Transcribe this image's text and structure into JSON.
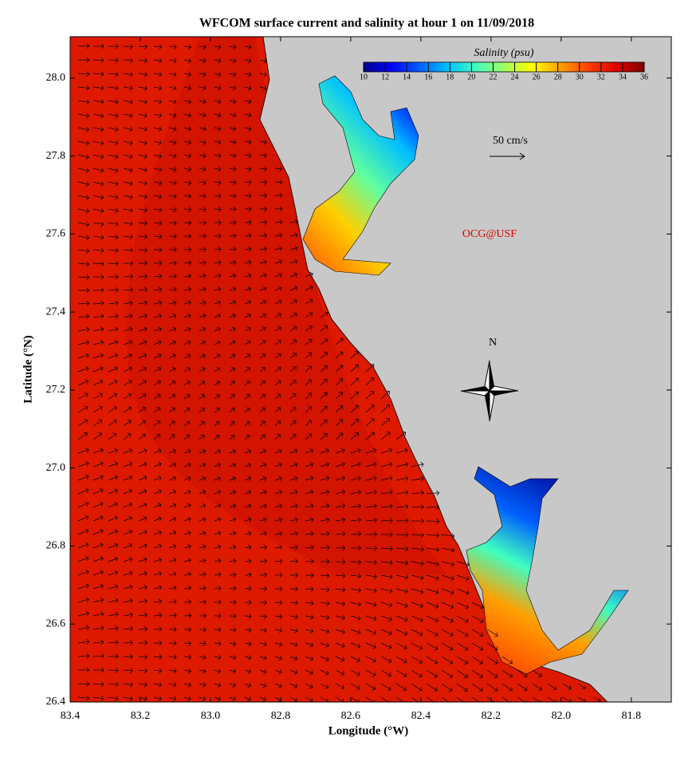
{
  "map": {
    "title": "WFCOM surface current and salinity at hour 1 on 11/09/2018",
    "x_label": "Longitude (°W)",
    "y_label": "Latitude (°N)",
    "xlim": [
      83.4,
      81.686
    ],
    "ylim": [
      26.4,
      28.106
    ],
    "xticks": [
      {
        "value": 83.4,
        "label": "83.4"
      },
      {
        "value": 83.2,
        "label": "83.2"
      },
      {
        "value": 83.0,
        "label": "83.0"
      },
      {
        "value": 82.8,
        "label": "82.8"
      },
      {
        "value": 82.6,
        "label": "82.6"
      },
      {
        "value": 82.4,
        "label": "82.4"
      },
      {
        "value": 82.2,
        "label": "82.2"
      },
      {
        "value": 82.0,
        "label": "82.0"
      },
      {
        "value": 81.8,
        "label": "81.8"
      }
    ],
    "yticks": [
      {
        "value": 26.4,
        "label": "26.4"
      },
      {
        "value": 26.6,
        "label": "26.6"
      },
      {
        "value": 26.8,
        "label": "26.8"
      },
      {
        "value": 27.0,
        "label": "27.0"
      },
      {
        "value": 27.2,
        "label": "27.2"
      },
      {
        "value": 27.4,
        "label": "27.4"
      },
      {
        "value": 27.6,
        "label": "27.6"
      },
      {
        "value": 27.8,
        "label": "27.8"
      },
      {
        "value": 28.0,
        "label": "28.0"
      }
    ],
    "colorbar": {
      "label": "Salinity (psu)",
      "lim": [
        10,
        36
      ],
      "ticks": [
        10,
        12,
        14,
        16,
        18,
        20,
        22,
        24,
        26,
        28,
        30,
        32,
        34,
        36
      ],
      "colors": [
        "#00008f",
        "#0000ff",
        "#0060ff",
        "#00c0ff",
        "#40ffc0",
        "#a0ff60",
        "#ffff00",
        "#ffa000",
        "#ff4000",
        "#e00000",
        "#800000"
      ]
    },
    "scale_label": "50 cm/s",
    "credit": "OCG@USF",
    "north": "N"
  }
}
